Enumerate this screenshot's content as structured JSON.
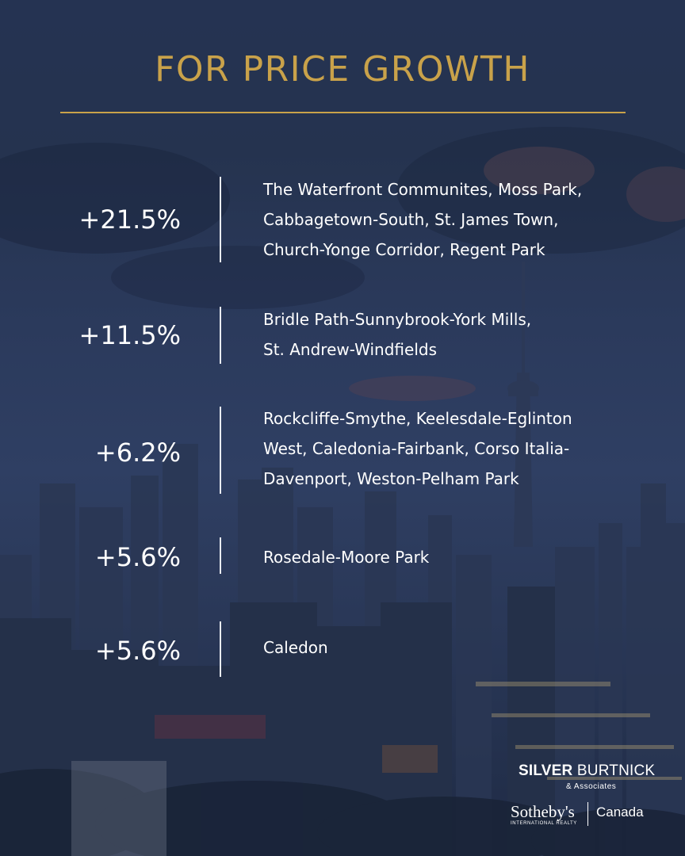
{
  "header": {
    "title": "FOR PRICE GROWTH"
  },
  "colors": {
    "accent_gold": "#c9a24a",
    "text": "#ffffff",
    "background_navy": "#26344f"
  },
  "rows": [
    {
      "percent": "+21.5%",
      "areas": "The Waterfront Communites, Moss Park,\nCabbagetown-South, St. James Town,\nChurch-Yonge Corridor, Regent Park"
    },
    {
      "percent": "+11.5%",
      "areas": "Bridle Path-Sunnybrook-York Mills,\nSt. Andrew-Windfields"
    },
    {
      "percent": "+6.2%",
      "areas": "Rockcliffe-Smythe, Keelesdale-Eglinton\nWest, Caledonia-Fairbank, Corso Italia-\nDavenport, Weston-Pelham Park"
    },
    {
      "percent": "+5.6%",
      "areas": "Rosedale-Moore Park"
    },
    {
      "percent": "+5.6%",
      "areas": "Caledon"
    }
  ],
  "logo": {
    "name_strong": "SILVER",
    "name_rest": "BURTNICK",
    "associates": "& Associates",
    "brand": "Sotheby's",
    "brand_sub": "INTERNATIONAL REALTY",
    "region": "Canada"
  }
}
